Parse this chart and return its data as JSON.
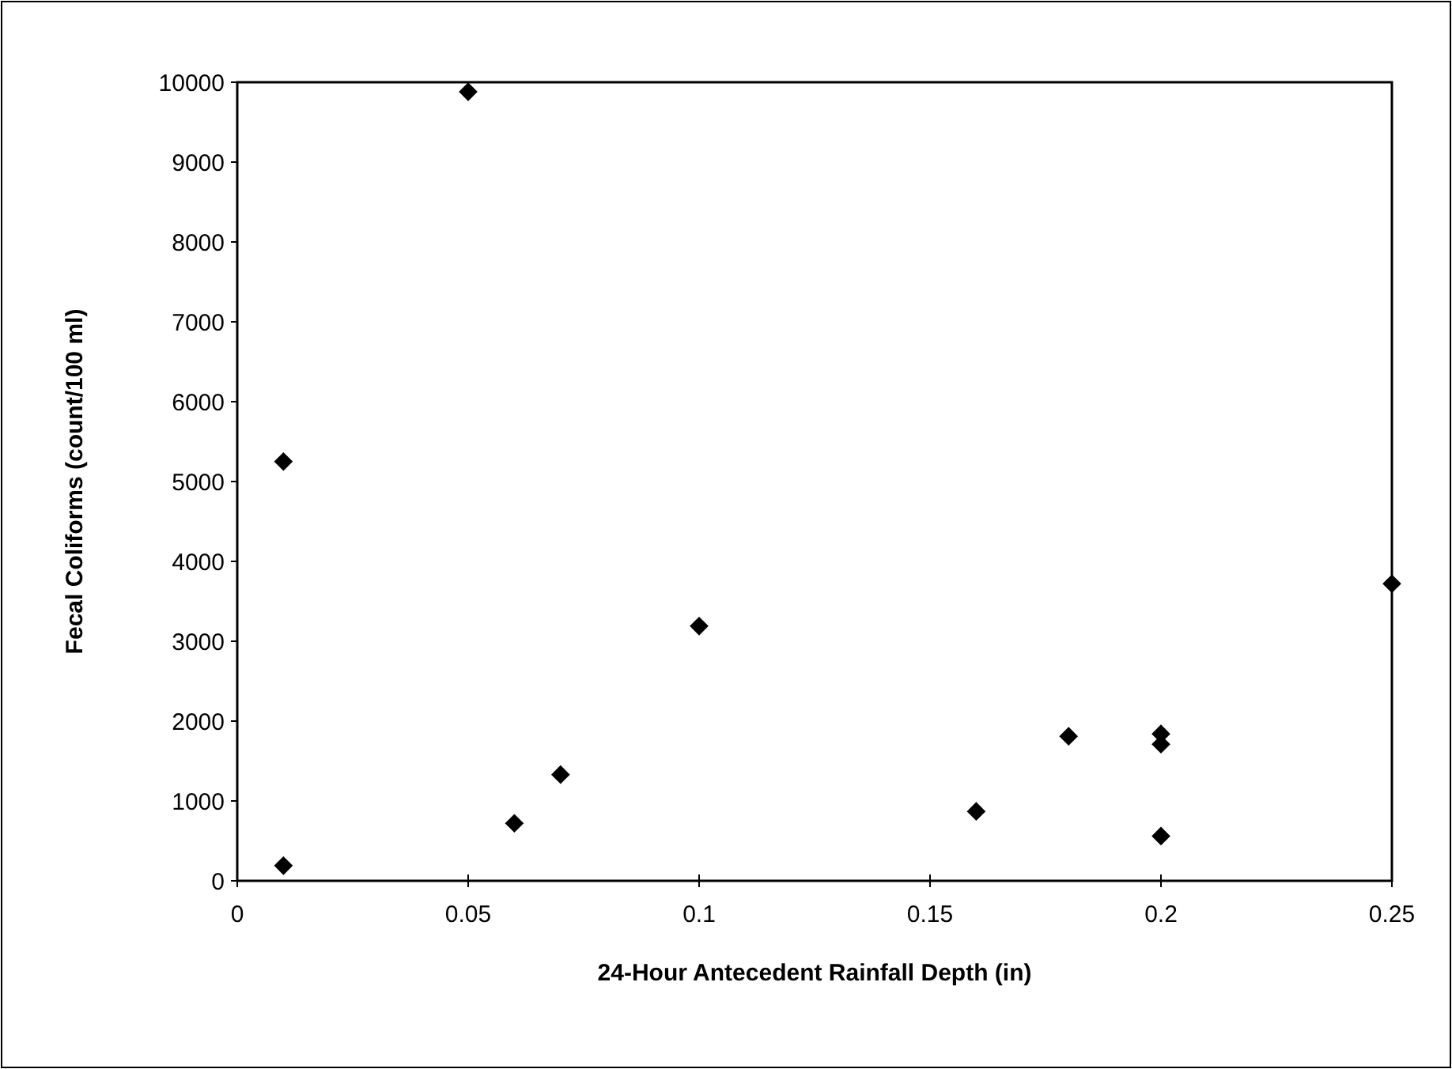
{
  "chart_data": {
    "type": "scatter",
    "xlabel": "24-Hour Antecedent Rainfall Depth (in)",
    "ylabel": "Fecal Coliforms (count/100 ml)",
    "x": [
      0.01,
      0.01,
      0.05,
      0.06,
      0.07,
      0.1,
      0.16,
      0.18,
      0.2,
      0.2,
      0.2,
      0.25
    ],
    "values": [
      5250,
      190,
      9880,
      720,
      1330,
      3190,
      870,
      1810,
      1840,
      1710,
      560,
      3720
    ],
    "color": "#000000",
    "marker": "diamond",
    "xlim": [
      0,
      0.25
    ],
    "xticks": [
      0,
      0.05,
      0.1,
      0.15,
      0.2,
      0.25
    ],
    "ylim": [
      0,
      10000
    ],
    "yticks": [
      0,
      1000,
      2000,
      3000,
      4000,
      5000,
      6000,
      7000,
      8000,
      9000,
      10000
    ],
    "grid": false
  }
}
